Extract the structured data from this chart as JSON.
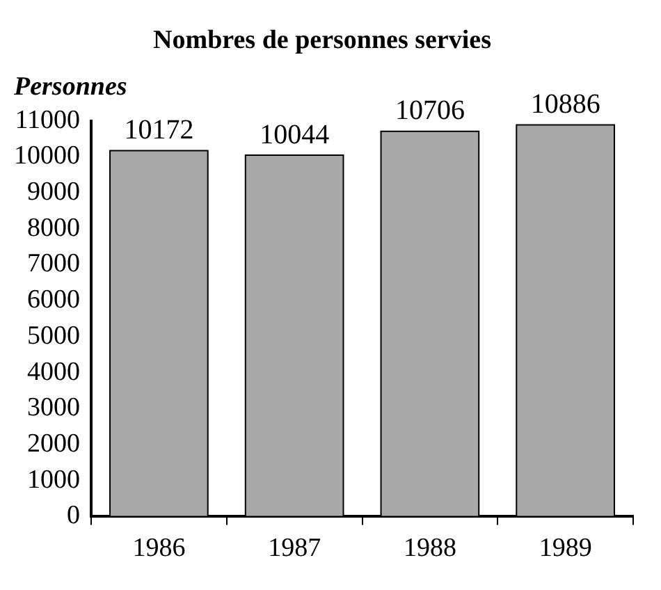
{
  "chart_data": {
    "type": "bar",
    "title": "Nombres de personnes servies",
    "ylabel": "Personnes",
    "categories": [
      "1986",
      "1987",
      "1988",
      "1989"
    ],
    "values": [
      10172,
      10044,
      10706,
      10886
    ],
    "color": "#a8a8a8",
    "ylim": [
      0,
      11000
    ],
    "yticks": [
      0,
      1000,
      2000,
      3000,
      4000,
      5000,
      6000,
      7000,
      8000,
      9000,
      10000,
      11000
    ],
    "grid": false,
    "legend": false,
    "data_labels": true
  }
}
